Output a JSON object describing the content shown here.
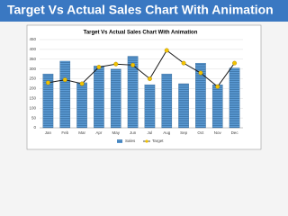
{
  "header": {
    "title": "Target Vs Actual Sales Chart With Animation"
  },
  "chart_data": {
    "type": "bar-line",
    "title": "Target Vs Actual Sales Chart With Animation",
    "categories": [
      "Jan",
      "Feb",
      "Mar",
      "Apr",
      "May",
      "Jun",
      "Jul",
      "Aug",
      "Sep",
      "Oct",
      "Nov",
      "Dec"
    ],
    "series": [
      {
        "name": "Sales",
        "type": "bar",
        "color": "#5b9bd5",
        "values": [
          275,
          340,
          230,
          315,
          300,
          365,
          220,
          275,
          225,
          330,
          220,
          305
        ]
      },
      {
        "name": "Target",
        "type": "line",
        "color": "#1a1a1a",
        "marker_color": "#f2c200",
        "values": [
          230,
          245,
          225,
          310,
          325,
          320,
          250,
          395,
          330,
          280,
          210,
          330
        ]
      }
    ],
    "ylim": [
      0,
      450
    ],
    "yticks": [
      0,
      50,
      100,
      150,
      200,
      250,
      300,
      350,
      400,
      450
    ],
    "grid": true,
    "legend": "bottom"
  }
}
